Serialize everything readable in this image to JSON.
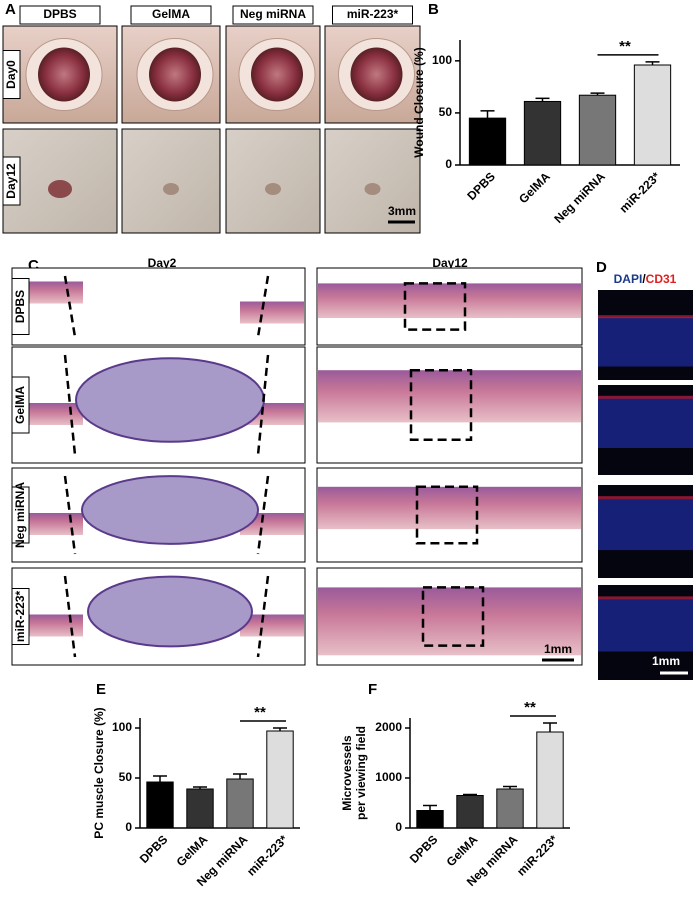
{
  "panel_A": {
    "label": "A",
    "columns": [
      "DPBS",
      "GelMA",
      "Neg miRNA",
      "miR-223*"
    ],
    "rows": [
      "Day0",
      "Day12"
    ],
    "scale_bar": "3mm"
  },
  "panel_C": {
    "label": "C",
    "columns": [
      "Day2",
      "Day12"
    ],
    "rows": [
      "DPBS",
      "GelMA",
      "Neg miRNA",
      "miR-223*"
    ],
    "scale_bar": "1mm"
  },
  "panel_D": {
    "label": "D",
    "stain_parts": [
      "DAPI",
      "/",
      "CD31"
    ],
    "scale_bar": "1mm"
  },
  "chart_data": [
    {
      "type": "bar",
      "panel": "B",
      "ylabel": "Wound Closure (%)",
      "categories": [
        "DPBS",
        "GelMA",
        "Neg miRNA",
        "miR-223*"
      ],
      "values": [
        45,
        61,
        67,
        96
      ],
      "errors": [
        7,
        3,
        2,
        3
      ],
      "colors": [
        "#000000",
        "#333333",
        "#777777",
        "#dddddd"
      ],
      "ylim": [
        0,
        120
      ],
      "yticks": [
        0,
        50,
        100
      ],
      "annotation": "**"
    },
    {
      "type": "bar",
      "panel": "E",
      "ylabel": "PC muscle Closure (%)",
      "categories": [
        "DPBS",
        "GelMA",
        "Neg miRNA",
        "miR-223*"
      ],
      "values": [
        46,
        39,
        49,
        97
      ],
      "errors": [
        6,
        2,
        5,
        3
      ],
      "colors": [
        "#000000",
        "#333333",
        "#777777",
        "#dddddd"
      ],
      "ylim": [
        0,
        110
      ],
      "yticks": [
        0,
        50,
        100
      ],
      "annotation": "**"
    },
    {
      "type": "bar",
      "panel": "F",
      "ylabel": [
        "Microvessels",
        "per viewing field"
      ],
      "categories": [
        "DPBS",
        "GelMA",
        "Neg miRNA",
        "miR-223*"
      ],
      "values": [
        350,
        650,
        780,
        1920
      ],
      "errors": [
        100,
        20,
        50,
        180
      ],
      "colors": [
        "#000000",
        "#333333",
        "#777777",
        "#dddddd"
      ],
      "ylim": [
        0,
        2200
      ],
      "yticks": [
        0,
        1000,
        2000
      ],
      "annotation": "**"
    }
  ]
}
